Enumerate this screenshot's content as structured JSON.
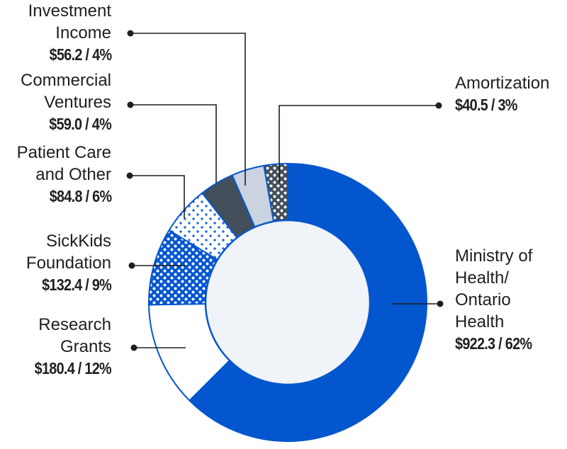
{
  "chart_data": {
    "type": "pie",
    "style": "donut",
    "unit": "$M",
    "slices": [
      {
        "key": "ministry",
        "lines": [
          "Ministry of",
          "Health/",
          "Ontario",
          "Health"
        ],
        "label": "Ministry of Health/ Ontario Health",
        "value": 922.3,
        "value_text": "$922.3 / 62%",
        "percent": 62,
        "color": "#0456cf",
        "pattern": "solid"
      },
      {
        "key": "research",
        "lines": [
          "Research",
          "Grants"
        ],
        "label": "Research Grants",
        "value": 180.4,
        "value_text": "$180.4 / 12%",
        "percent": 12,
        "color": "#ffffff",
        "pattern": "solid"
      },
      {
        "key": "sickkids",
        "lines": [
          "SickKids",
          "Foundation"
        ],
        "label": "SickKids Foundation",
        "value": 132.4,
        "value_text": "$132.4 / 9%",
        "percent": 9,
        "color": "#0456cf",
        "pattern": "white-dots"
      },
      {
        "key": "patient",
        "lines": [
          "Patient Care",
          "and Other"
        ],
        "label": "Patient Care and Other",
        "value": 84.8,
        "value_text": "$84.8 / 6%",
        "percent": 6,
        "color": "#ffffff",
        "pattern": "blue-plus"
      },
      {
        "key": "commercial",
        "lines": [
          "Commercial",
          "Ventures"
        ],
        "label": "Commercial Ventures",
        "value": 59.0,
        "value_text": "$59.0 / 4%",
        "percent": 4,
        "color": "#444f5c",
        "pattern": "solid"
      },
      {
        "key": "investment",
        "lines": [
          "Investment",
          "Income"
        ],
        "label": "Investment Income",
        "value": 56.2,
        "value_text": "$56.2 / 4%",
        "percent": 4,
        "color": "#cad3df",
        "pattern": "solid"
      },
      {
        "key": "amortization",
        "lines": [
          "Amortization"
        ],
        "label": "Amortization",
        "value": 40.5,
        "value_text": "$40.5 / 3%",
        "percent": 3,
        "color": "#444f5c",
        "pattern": "white-dots"
      }
    ],
    "center_color": "#f0f3f7",
    "outline_color": "#0456cf",
    "leader_color": "#1f1f1f"
  }
}
